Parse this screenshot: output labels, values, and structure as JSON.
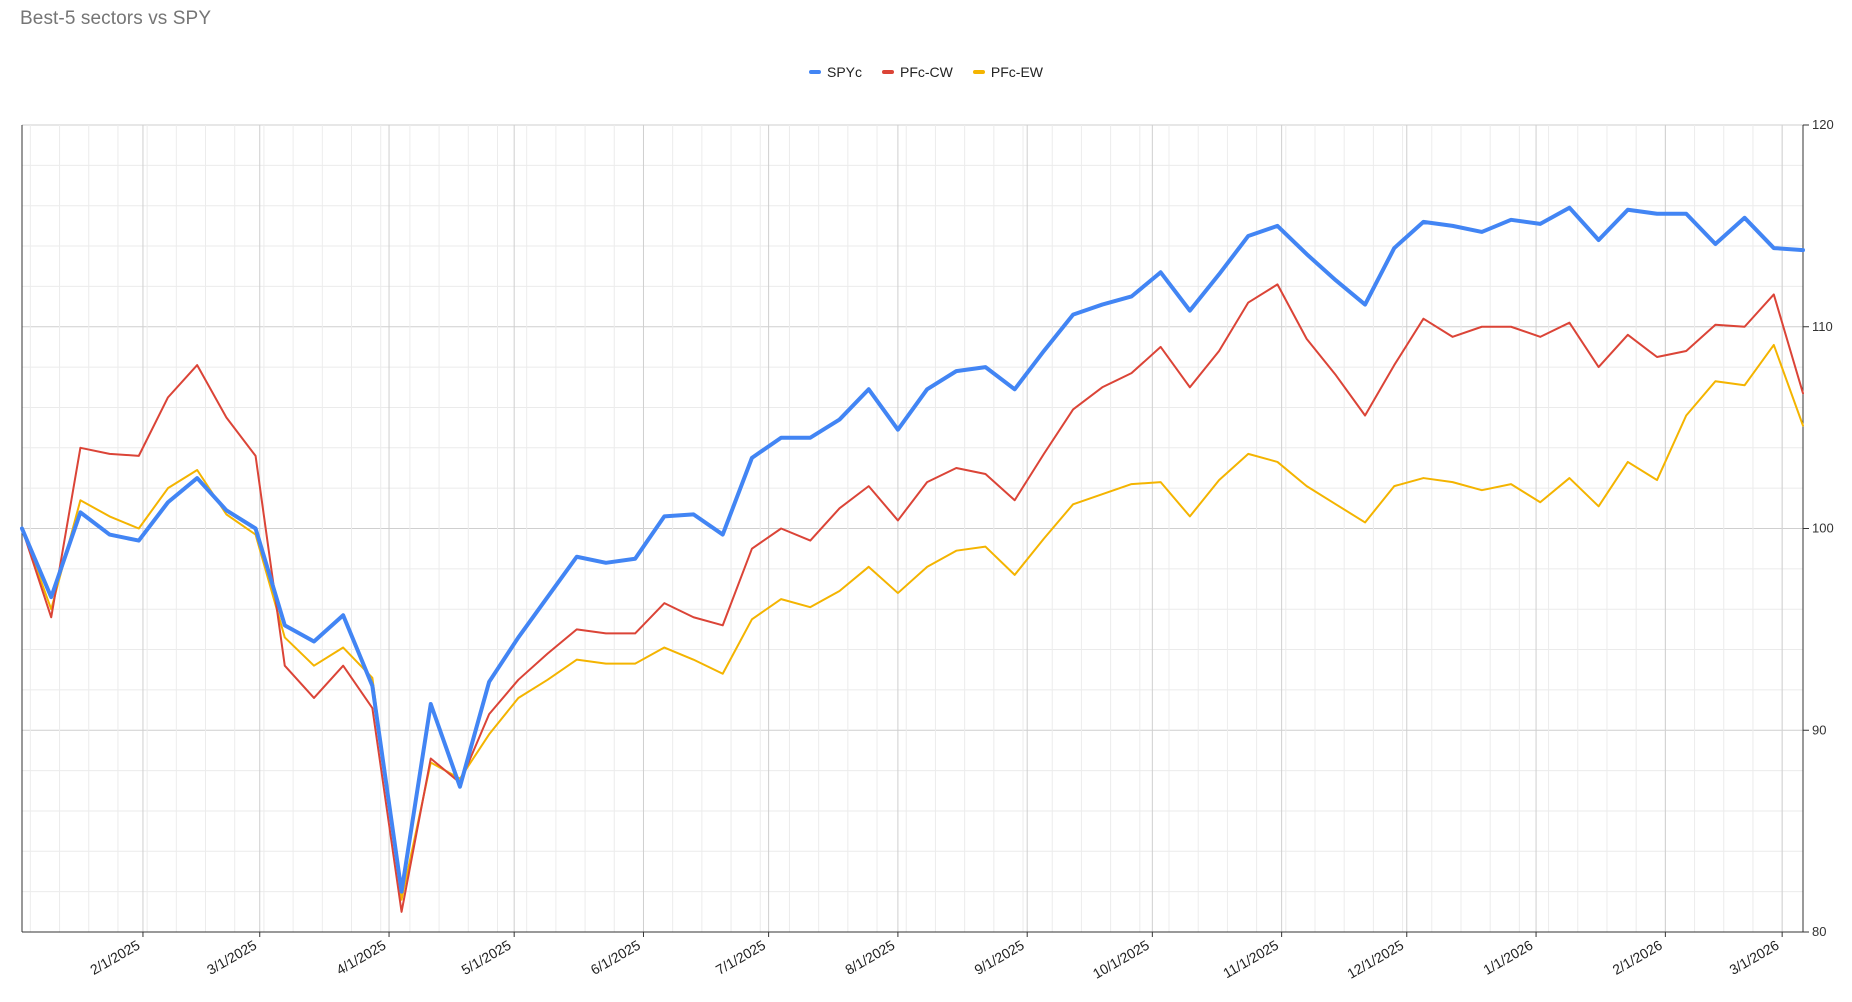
{
  "chart_data": {
    "type": "line",
    "title": "Best-5 sectors vs SPY",
    "xlabel": "",
    "ylabel": "",
    "ylim": [
      80,
      120
    ],
    "yticks": [
      80,
      90,
      100,
      110,
      120
    ],
    "y_axis_side": "right",
    "grid": true,
    "legend_position": "top-center",
    "x_tick_labels": [
      "2/1/2025",
      "3/1/2025",
      "4/1/2025",
      "5/1/2025",
      "6/1/2025",
      "7/1/2025",
      "8/1/2025",
      "9/1/2025",
      "10/1/2025",
      "11/1/2025",
      "12/1/2025",
      "1/1/2026",
      "2/1/2026",
      "3/1/2026"
    ],
    "x": [
      "2025-01-03",
      "2025-01-10",
      "2025-01-17",
      "2025-01-24",
      "2025-01-31",
      "2025-02-07",
      "2025-02-14",
      "2025-02-21",
      "2025-02-28",
      "2025-03-07",
      "2025-03-14",
      "2025-03-21",
      "2025-03-28",
      "2025-04-04",
      "2025-04-11",
      "2025-04-18",
      "2025-04-25",
      "2025-05-02",
      "2025-05-09",
      "2025-05-16",
      "2025-05-23",
      "2025-05-30",
      "2025-06-06",
      "2025-06-13",
      "2025-06-20",
      "2025-06-27",
      "2025-07-04",
      "2025-07-11",
      "2025-07-18",
      "2025-07-25",
      "2025-08-01",
      "2025-08-08",
      "2025-08-15",
      "2025-08-22",
      "2025-08-29",
      "2025-09-05",
      "2025-09-12",
      "2025-09-19",
      "2025-09-26",
      "2025-10-03",
      "2025-10-10",
      "2025-10-17",
      "2025-10-24",
      "2025-10-31",
      "2025-11-07",
      "2025-11-14",
      "2025-11-21",
      "2025-11-28",
      "2025-12-05",
      "2025-12-12",
      "2025-12-19",
      "2025-12-26",
      "2026-01-02",
      "2026-01-09",
      "2026-01-16",
      "2026-01-23",
      "2026-01-30",
      "2026-02-06",
      "2026-02-13",
      "2026-02-20",
      "2026-02-27",
      "2026-03-06"
    ],
    "series": [
      {
        "name": "SPYc",
        "color": "#4285F4",
        "values": [
          100.0,
          96.6,
          100.8,
          99.7,
          99.4,
          101.3,
          102.5,
          100.9,
          100.0,
          95.2,
          94.4,
          95.7,
          92.2,
          82.0,
          91.3,
          87.2,
          92.4,
          94.6,
          96.6,
          98.6,
          98.3,
          98.5,
          100.6,
          100.7,
          99.7,
          103.5,
          104.5,
          104.5,
          105.4,
          106.9,
          104.9,
          106.9,
          107.8,
          108.0,
          106.9,
          108.8,
          110.6,
          111.1,
          111.5,
          112.7,
          110.8,
          112.6,
          114.5,
          115.0,
          113.6,
          112.3,
          111.1,
          113.9,
          115.2,
          115.0,
          114.7,
          115.3,
          115.1,
          115.9,
          114.3,
          115.8,
          115.6,
          115.6,
          114.1,
          115.4,
          113.9,
          113.8
        ]
      },
      {
        "name": "PFc-CW",
        "color": "#DB4437",
        "values": [
          100.0,
          95.6,
          104.0,
          103.7,
          103.6,
          106.5,
          108.1,
          105.5,
          103.6,
          93.2,
          91.6,
          93.2,
          91.1,
          81.0,
          88.6,
          87.4,
          90.8,
          92.5,
          93.8,
          95.0,
          94.8,
          94.8,
          96.3,
          95.6,
          95.2,
          99.0,
          100.0,
          99.4,
          101.0,
          102.1,
          100.4,
          102.3,
          103.0,
          102.7,
          101.4,
          103.7,
          105.9,
          107.0,
          107.7,
          109.0,
          107.0,
          108.8,
          111.2,
          112.1,
          109.4,
          107.6,
          105.6,
          108.1,
          110.4,
          109.5,
          110.0,
          110.0,
          109.5,
          110.2,
          108.0,
          109.6,
          108.5,
          108.8,
          110.1,
          110.0,
          111.6,
          106.7
        ]
      },
      {
        "name": "PFc-EW",
        "color": "#F4B400",
        "values": [
          100.0,
          96.0,
          101.4,
          100.6,
          100.0,
          102.0,
          102.9,
          100.7,
          99.7,
          94.6,
          93.2,
          94.1,
          92.6,
          81.6,
          88.4,
          87.6,
          89.8,
          91.6,
          92.5,
          93.5,
          93.3,
          93.3,
          94.1,
          93.5,
          92.8,
          95.5,
          96.5,
          96.1,
          96.9,
          98.1,
          96.8,
          98.1,
          98.9,
          99.1,
          97.7,
          99.5,
          101.2,
          101.7,
          102.2,
          102.3,
          100.6,
          102.4,
          103.7,
          103.3,
          102.1,
          101.2,
          100.3,
          102.1,
          102.5,
          102.3,
          101.9,
          102.2,
          101.3,
          102.5,
          101.1,
          103.3,
          102.4,
          105.6,
          107.3,
          107.1,
          109.1,
          105.1
        ]
      }
    ]
  }
}
